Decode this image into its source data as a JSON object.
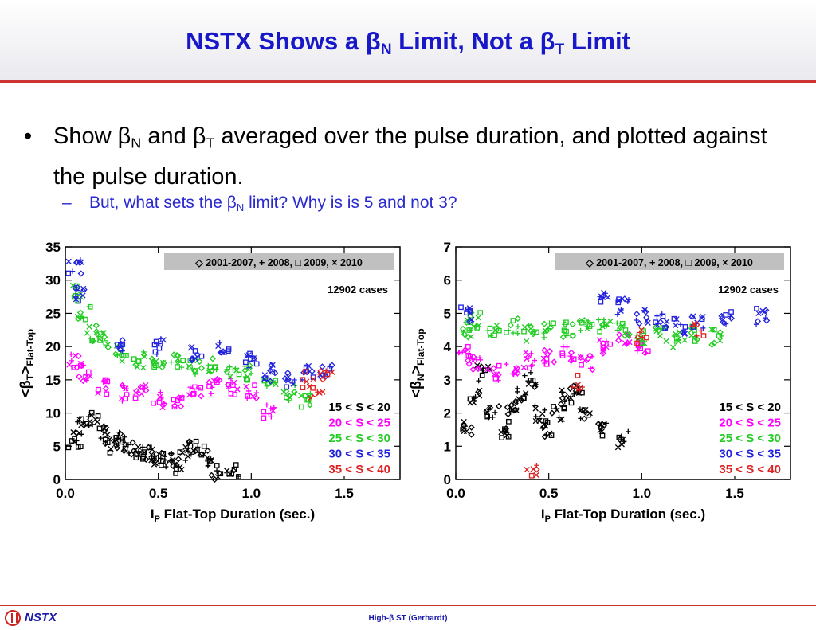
{
  "slide": {
    "title": {
      "pre": "NSTX Shows a ",
      "beta1": "β",
      "sub1": "N",
      "mid": " Limit, Not a ",
      "beta2": "β",
      "sub2": "T",
      "post": " Limit"
    },
    "bullet_main": {
      "marker": "•",
      "t1": "Show ",
      "b1": "β",
      "s1": "N",
      "t2": " and ",
      "b2": "β",
      "s2": "T",
      "t3": " averaged over the pulse duration, and plotted against the pulse duration."
    },
    "bullet_sub": {
      "marker": "–",
      "t1": "But, what sets the ",
      "b1": "β",
      "s1": "N",
      "t2": " limit? Why is is 5 and not 3?"
    },
    "footer": {
      "logo_text": "NSTX",
      "center": "High-β ST (Gerhardt)"
    }
  },
  "colors": {
    "title": "#1818c8",
    "sub_bullet": "#2a2ad0",
    "rule": "#cc3333",
    "s15_20": "#000000",
    "s20_25": "#ff00ff",
    "s25_30": "#22cc22",
    "s30_35": "#2222dd",
    "s35_40": "#dd2222"
  },
  "chart_data": [
    {
      "type": "scatter",
      "title": "",
      "xlabel": "I_P Flat-Top Duration (sec.)",
      "ylabel": "<β_T>_Flat-Top",
      "xlim": [
        0.0,
        1.8
      ],
      "ylim": [
        0,
        35
      ],
      "xticks": [
        "0.0",
        "0.5",
        "1.0",
        "1.5"
      ],
      "yticks": [
        "0",
        "5",
        "10",
        "15",
        "20",
        "25",
        "30",
        "35"
      ],
      "legend_top": "◇ 2001-2007, + 2008, □ 2009, × 2010",
      "cases_label": "12902 cases",
      "legend_items": [
        "15 < S < 20",
        "20 < S < 25",
        "25 < S < 30",
        "30 < S < 35",
        "35 < S < 40"
      ],
      "legend_placement": "lower-right",
      "series": [
        {
          "name": "15 < S < 20",
          "color": "#000000",
          "x": [
            0.05,
            0.1,
            0.15,
            0.2,
            0.25,
            0.3,
            0.35,
            0.4,
            0.45,
            0.5,
            0.55,
            0.6,
            0.65,
            0.7,
            0.75,
            0.8,
            0.9
          ],
          "y": [
            6,
            8,
            9,
            7,
            5,
            6,
            5,
            4,
            4,
            3,
            3,
            2,
            4,
            5,
            4,
            1,
            1
          ]
        },
        {
          "name": "20 < S < 25",
          "color": "#ff00ff",
          "x": [
            0.05,
            0.1,
            0.2,
            0.3,
            0.4,
            0.5,
            0.6,
            0.7,
            0.8,
            0.9,
            1.0,
            1.1
          ],
          "y": [
            18,
            16,
            14,
            13,
            13,
            12,
            12,
            13,
            14,
            14,
            13,
            10
          ]
        },
        {
          "name": "25 < S < 30",
          "color": "#22cc22",
          "x": [
            0.05,
            0.1,
            0.15,
            0.2,
            0.3,
            0.4,
            0.5,
            0.6,
            0.7,
            0.8,
            0.9,
            1.0,
            1.1,
            1.2,
            1.3
          ],
          "y": [
            28,
            25,
            22,
            21,
            19,
            18,
            18,
            18,
            17,
            17,
            16,
            16,
            15,
            13,
            12
          ]
        },
        {
          "name": "30 < S < 35",
          "color": "#2222dd",
          "x": [
            0.05,
            0.08,
            0.3,
            0.5,
            0.7,
            0.85,
            1.0,
            1.1,
            1.2,
            1.3,
            1.4
          ],
          "y": [
            32,
            28,
            20,
            20,
            19,
            20,
            18,
            16,
            15,
            16,
            16
          ]
        },
        {
          "name": "35 < S < 40",
          "color": "#dd2222",
          "x": [
            1.3,
            1.35,
            1.4
          ],
          "y": [
            15,
            13,
            16
          ]
        }
      ]
    },
    {
      "type": "scatter",
      "title": "",
      "xlabel": "I_P Flat-Top Duration (sec.)",
      "ylabel": "<β_N>_Flat-Top",
      "xlim": [
        0.0,
        1.8
      ],
      "ylim": [
        0,
        7
      ],
      "xticks": [
        "0.0",
        "0.5",
        "1.0",
        "1.5"
      ],
      "yticks": [
        "0",
        "1",
        "2",
        "3",
        "4",
        "5",
        "6",
        "7"
      ],
      "legend_top": "◇ 2001-2007, + 2008, □ 2009, × 2010",
      "cases_label": "12902 cases",
      "legend_items": [
        "15 < S < 20",
        "20 < S < 25",
        "25 < S < 30",
        "30 < S < 35",
        "35 < S < 40"
      ],
      "legend_placement": "lower-right",
      "series": [
        {
          "name": "15 < S < 20",
          "color": "#000000",
          "x": [
            0.05,
            0.1,
            0.15,
            0.2,
            0.25,
            0.3,
            0.35,
            0.4,
            0.45,
            0.5,
            0.55,
            0.6,
            0.65,
            0.7,
            0.8,
            0.9
          ],
          "y": [
            1.5,
            2.5,
            3.2,
            2.0,
            1.5,
            2.2,
            2.5,
            3.0,
            2.0,
            1.5,
            2.0,
            2.5,
            2.8,
            2.0,
            1.5,
            1.2
          ]
        },
        {
          "name": "20 < S < 25",
          "color": "#ff00ff",
          "x": [
            0.05,
            0.1,
            0.2,
            0.3,
            0.4,
            0.5,
            0.6,
            0.7,
            0.8,
            0.9,
            1.0
          ],
          "y": [
            3.8,
            3.5,
            3.2,
            3.4,
            3.6,
            3.7,
            3.8,
            3.5,
            4.0,
            4.2,
            4.0
          ]
        },
        {
          "name": "25 < S < 30",
          "color": "#22cc22",
          "x": [
            0.05,
            0.1,
            0.2,
            0.3,
            0.4,
            0.5,
            0.6,
            0.7,
            0.8,
            0.9,
            1.0,
            1.1,
            1.2,
            1.3,
            1.4
          ],
          "y": [
            4.5,
            4.8,
            4.5,
            4.6,
            4.4,
            4.5,
            4.5,
            4.6,
            4.6,
            4.5,
            4.3,
            4.4,
            4.2,
            4.4,
            4.3
          ]
        },
        {
          "name": "30 < S < 35",
          "color": "#2222dd",
          "x": [
            0.05,
            0.8,
            0.9,
            1.0,
            1.1,
            1.2,
            1.3,
            1.45,
            1.65
          ],
          "y": [
            5.0,
            5.4,
            5.2,
            4.9,
            4.8,
            4.6,
            4.8,
            4.8,
            4.9
          ]
        },
        {
          "name": "35 < S < 40",
          "color": "#dd2222",
          "x": [
            1.0,
            1.3,
            0.65,
            0.4
          ],
          "y": [
            4.3,
            4.5,
            2.9,
            0.3
          ]
        }
      ]
    }
  ]
}
